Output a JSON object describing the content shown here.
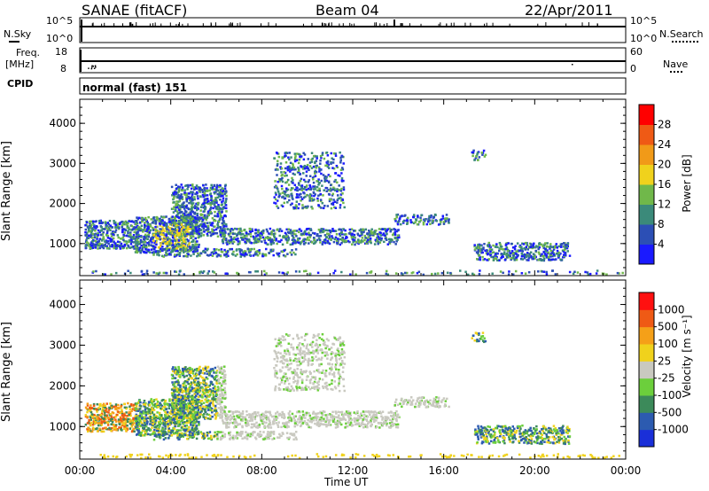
{
  "header": {
    "station": "SANAE (fitACF)",
    "beam": "Beam 04",
    "date": "22/Apr/2011"
  },
  "nsky_panel": {
    "left_label": "N.Sky",
    "left_ticks": [
      "10^5",
      "10^0"
    ],
    "right_label": "N.Search",
    "right_ticks": [
      "10^5",
      "10^0"
    ]
  },
  "freq_panel": {
    "left_label_line1": "Freq.",
    "left_label_line2": "[MHz]",
    "left_ticks": [
      "18",
      "8"
    ],
    "right_label": "Nave",
    "right_ticks": [
      "60",
      "0"
    ]
  },
  "cpid": {
    "label": "CPID",
    "value": "normal (fast) 151"
  },
  "chart_data": [
    {
      "type": "heatmap",
      "name": "Power",
      "ylabel": "Slant Range [km]",
      "yticks": [
        1000,
        2000,
        3000,
        4000
      ],
      "ylim": [
        200,
        4600
      ],
      "xlim": [
        "00:00",
        "24:00"
      ],
      "colorbar": {
        "label": "Power [dB]",
        "tick_labels": [
          "4",
          "8",
          "12",
          "16",
          "20",
          "24",
          "28"
        ],
        "range": [
          0,
          30
        ],
        "colors": [
          "#1a1aff",
          "#2c4fb5",
          "#3b8a7a",
          "#70b84a",
          "#f0d21c",
          "#f19a18",
          "#ef5a15",
          "#ff0000"
        ]
      }
    },
    {
      "type": "heatmap",
      "name": "Velocity",
      "ylabel": "Slant Range [km]",
      "yticks": [
        1000,
        2000,
        3000,
        4000
      ],
      "ylim": [
        200,
        4600
      ],
      "xlim": [
        "00:00",
        "24:00"
      ],
      "colorbar": {
        "label": "Velocity [m s⁻¹]",
        "tick_labels": [
          "1000",
          "500",
          "100",
          "25",
          "-25",
          "-100",
          "-500",
          "-1000"
        ],
        "colors": [
          "#1a2fd8",
          "#2c5bb0",
          "#3c8a5a",
          "#6ccf3c",
          "#c9c9c0",
          "#f0d21c",
          "#f5a018",
          "#ef5a15",
          "#ff1010"
        ]
      }
    }
  ],
  "xaxis": {
    "tick_labels": [
      "00:00",
      "04:00",
      "08:00",
      "12:00",
      "16:00",
      "20:00",
      "00:00"
    ],
    "label": "Time UT"
  }
}
